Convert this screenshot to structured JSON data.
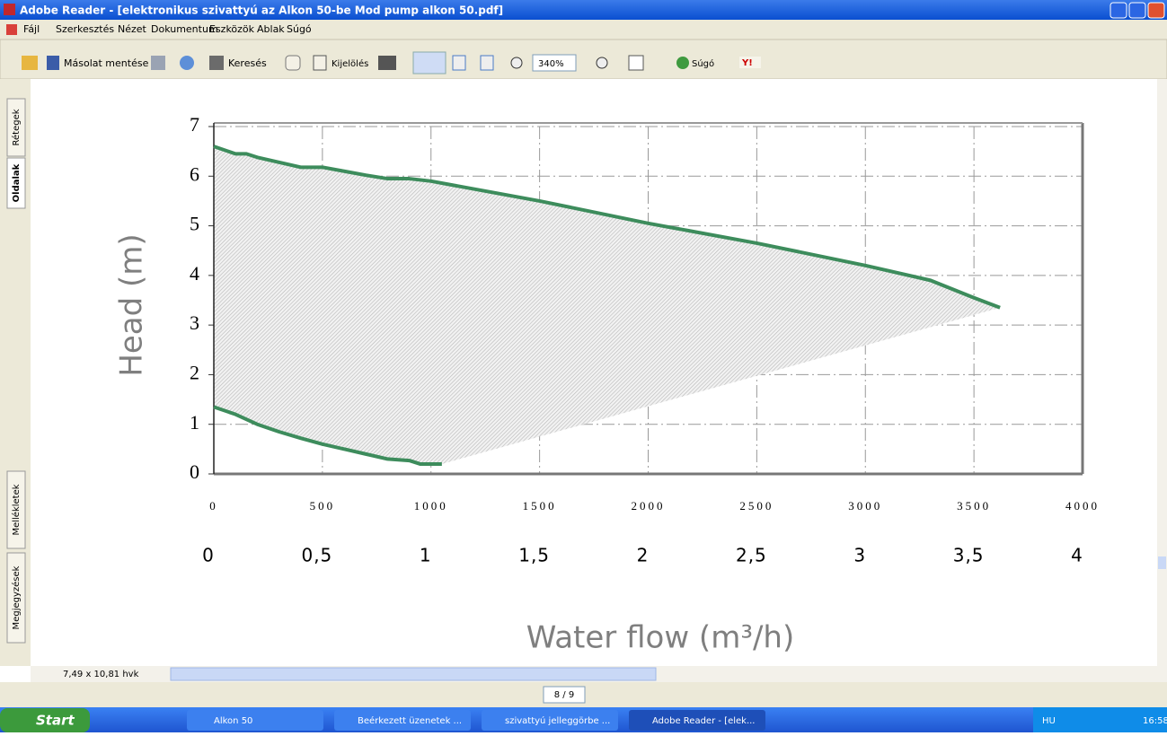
{
  "window": {
    "title": "Adobe Reader - [elektronikus szivattyú az Alkon 50-be  Mod pump alkon 50.pdf]",
    "menu": [
      "Fájl",
      "Szerkesztés",
      "Nézet",
      "Dokumentum",
      "Eszközök",
      "Ablak",
      "Súgó"
    ],
    "toolbar": {
      "save_copy": "Másolat mentése",
      "search": "Keresés",
      "select": "Kijelölés",
      "zoom": "340%",
      "help": "Súgó"
    },
    "side_tabs": [
      "Rétegek",
      "Oldalak",
      "Mellékletek",
      "Megjegyzések"
    ],
    "page_size": "7,49 x 10,81 hvk",
    "page_indicator": "8 / 9"
  },
  "taskbar": {
    "start": "Start",
    "items": [
      "Alkon 50",
      "Beérkezett üzenetek ...",
      "szivattyú jelleggörbe ...",
      "Adobe Reader - [elek..."
    ],
    "language": "HU",
    "clock": "16:58"
  },
  "chart_data": {
    "type": "area",
    "ylabel": "Head (m)",
    "xlabel": "Water flow (m³/h)",
    "xlim": [
      0,
      4000
    ],
    "xticks": [
      0,
      500,
      1000,
      1500,
      2000,
      2500,
      3000,
      3500,
      4000
    ],
    "x2lim": [
      0,
      4
    ],
    "x2ticks": [
      {
        "value": 0,
        "label": "0"
      },
      {
        "value": 0.5,
        "label": "0,5"
      },
      1,
      {
        "value": 1.5,
        "label": "1,5"
      },
      2,
      {
        "value": 2.5,
        "label": "2,5"
      },
      3,
      {
        "value": 3.5,
        "label": "3,5"
      },
      4
    ],
    "ylim": [
      0,
      7
    ],
    "yticks": [
      0,
      1,
      2,
      3,
      4,
      5,
      6,
      7
    ],
    "grid": true,
    "fill_color": "#c8c8c8",
    "series": [
      {
        "color": "#3d8c5c",
        "x": [
          0,
          100,
          150,
          200,
          300,
          400,
          500,
          600,
          700,
          800,
          900,
          1000,
          1500,
          2000,
          2500,
          3000,
          3300,
          3500,
          3620
        ],
        "values": [
          6.6,
          6.45,
          6.45,
          6.38,
          6.28,
          6.18,
          6.18,
          6.1,
          6.02,
          5.95,
          5.95,
          5.9,
          5.5,
          5.05,
          4.65,
          4.2,
          3.9,
          3.55,
          3.35
        ]
      },
      {
        "color": "#3d8c5c",
        "x": [
          0,
          100,
          200,
          300,
          400,
          500,
          600,
          700,
          800,
          900,
          950,
          1050
        ],
        "values": [
          1.35,
          1.2,
          1.0,
          0.85,
          0.72,
          0.6,
          0.5,
          0.4,
          0.3,
          0.27,
          0.2,
          0.2
        ]
      }
    ]
  }
}
